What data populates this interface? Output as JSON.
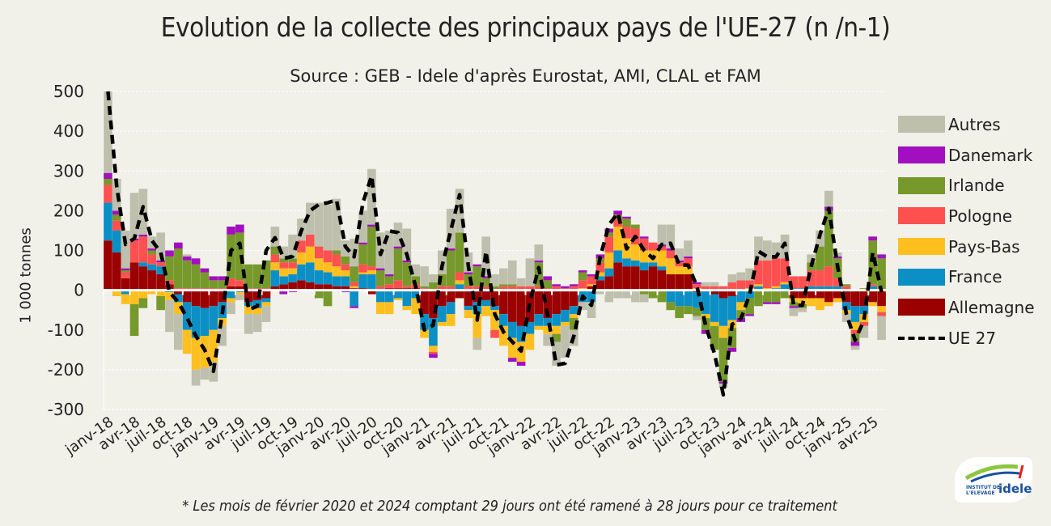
{
  "title": "Evolution de la collecte des principaux pays de l'UE-27 (n  /n-1)",
  "subtitle": "Source : GEB - Idele d'après Eurostat, AMI, CLAL et FAM",
  "footnote": "* Les mois de février 2020 et 2024 comptant 29 jours ont été ramené à 28 jours pour ce traitement",
  "logo_text": "INSTITUT DE L'ELEVAGE idele",
  "chart_data": {
    "type": "bar",
    "stacked": true,
    "ylabel": "1 000 tonnes",
    "ylim": [
      -300,
      500
    ],
    "yticks": [
      "500",
      "400",
      "300",
      "200",
      "100",
      "0",
      "-100",
      "-200",
      "-300"
    ],
    "grid": true,
    "legend_position": "right",
    "first_month": "janv-18",
    "tick_every_months": 3,
    "x_tick_labels": [
      "janv-18",
      "avr-18",
      "juil-18",
      "oct-18",
      "janv-19",
      "avr-19",
      "juil-19",
      "oct-19",
      "janv-20",
      "avr-20",
      "juil-20",
      "oct-20",
      "janv-21",
      "avr-21",
      "juil-21",
      "oct-21",
      "janv-22",
      "avr-22",
      "juil-22",
      "oct-22",
      "janv-23",
      "avr-23",
      "juil-23",
      "oct-23",
      "janv-24",
      "avr-24",
      "juil-24",
      "oct-24",
      "janv-25",
      "avr-25"
    ],
    "series": [
      {
        "name": "Allemagne",
        "color": "#9b0000",
        "values": [
          125,
          95,
          30,
          70,
          60,
          50,
          40,
          15,
          -10,
          -30,
          -40,
          -45,
          -40,
          -30,
          10,
          10,
          -30,
          -25,
          -20,
          10,
          15,
          20,
          25,
          20,
          15,
          15,
          10,
          10,
          5,
          5,
          -10,
          0,
          5,
          5,
          5,
          5,
          -60,
          -70,
          -40,
          -30,
          -20,
          -40,
          -30,
          -25,
          -40,
          -60,
          -80,
          -90,
          -80,
          -60,
          -70,
          -60,
          -50,
          -40,
          0,
          10,
          25,
          35,
          70,
          60,
          60,
          50,
          60,
          50,
          40,
          40,
          40,
          -5,
          0,
          -10,
          -20,
          -15,
          0,
          0,
          0,
          0,
          0,
          0,
          -20,
          -20,
          -20,
          -20,
          -30,
          -20,
          -30,
          -40,
          -40,
          -30,
          -40
        ]
      },
      {
        "name": "France",
        "color": "#0b8fc5",
        "values": [
          95,
          55,
          -10,
          0,
          10,
          15,
          20,
          -5,
          -20,
          -70,
          -80,
          -70,
          -60,
          -40,
          -20,
          -5,
          -10,
          -20,
          -10,
          40,
          20,
          20,
          40,
          50,
          35,
          30,
          25,
          25,
          -40,
          35,
          40,
          -30,
          -30,
          -20,
          -40,
          -20,
          -40,
          -70,
          -40,
          -30,
          15,
          -10,
          -30,
          -15,
          -10,
          -30,
          -40,
          -40,
          -30,
          -30,
          -20,
          -30,
          -30,
          -20,
          -30,
          -30,
          10,
          20,
          30,
          20,
          15,
          20,
          10,
          10,
          -30,
          -40,
          -40,
          -40,
          -60,
          -70,
          -70,
          -60,
          -30,
          -20,
          10,
          0,
          5,
          15,
          5,
          5,
          10,
          10,
          10,
          10,
          -20,
          -40,
          -20,
          10,
          0
        ]
      },
      {
        "name": "Pays-Bas",
        "color": "#ffbf1f",
        "values": [
          0,
          -15,
          -25,
          -35,
          -20,
          -10,
          -15,
          -20,
          -30,
          -60,
          -80,
          -80,
          -80,
          -20,
          -10,
          -5,
          -20,
          -15,
          -10,
          20,
          20,
          15,
          30,
          40,
          30,
          25,
          25,
          15,
          5,
          5,
          10,
          -30,
          -30,
          -5,
          -10,
          -40,
          -20,
          -15,
          -10,
          -30,
          10,
          -20,
          -60,
          -25,
          -50,
          -50,
          -50,
          -50,
          -40,
          -10,
          -20,
          -20,
          -10,
          -10,
          5,
          5,
          10,
          40,
          60,
          50,
          40,
          30,
          30,
          40,
          40,
          20,
          20,
          5,
          -10,
          -10,
          -30,
          -20,
          -20,
          5,
          5,
          5,
          5,
          5,
          -10,
          -15,
          -20,
          -30,
          -10,
          -10,
          -10,
          -20,
          -20,
          -10,
          -15
        ]
      },
      {
        "name": "Pologne",
        "color": "#ff5050",
        "values": [
          45,
          25,
          15,
          55,
          65,
          25,
          10,
          10,
          5,
          5,
          5,
          5,
          5,
          5,
          20,
          15,
          5,
          5,
          5,
          20,
          15,
          15,
          30,
          30,
          30,
          30,
          30,
          15,
          10,
          20,
          10,
          10,
          10,
          20,
          5,
          10,
          5,
          -5,
          10,
          10,
          20,
          10,
          10,
          10,
          -20,
          10,
          10,
          10,
          10,
          10,
          5,
          10,
          5,
          10,
          20,
          20,
          25,
          40,
          20,
          30,
          40,
          30,
          20,
          10,
          20,
          10,
          20,
          10,
          10,
          10,
          10,
          20,
          25,
          20,
          60,
          70,
          70,
          60,
          30,
          30,
          40,
          40,
          50,
          20,
          10,
          -10,
          -10,
          5,
          -10
        ]
      },
      {
        "name": "Irlande",
        "color": "#77982b",
        "values": [
          15,
          15,
          5,
          -80,
          -25,
          10,
          -35,
          60,
          100,
          70,
          60,
          40,
          20,
          20,
          110,
          120,
          60,
          60,
          70,
          20,
          10,
          10,
          0,
          0,
          -20,
          -40,
          10,
          20,
          40,
          50,
          100,
          40,
          20,
          80,
          60,
          20,
          5,
          20,
          30,
          90,
          100,
          30,
          50,
          20,
          10,
          5,
          5,
          0,
          0,
          60,
          20,
          -20,
          0,
          -30,
          20,
          0,
          10,
          10,
          10,
          20,
          10,
          -10,
          -20,
          -30,
          -20,
          -30,
          -20,
          -20,
          -30,
          -60,
          -110,
          -50,
          -20,
          -40,
          -40,
          -30,
          -30,
          -20,
          -10,
          -10,
          20,
          60,
          140,
          50,
          5,
          -20,
          5,
          110,
          80
        ]
      },
      {
        "name": "Danemark",
        "color": "#a20fc0",
        "values": [
          15,
          10,
          5,
          5,
          5,
          5,
          5,
          15,
          15,
          10,
          15,
          10,
          10,
          10,
          20,
          20,
          0,
          0,
          0,
          0,
          -10,
          -5,
          0,
          0,
          0,
          0,
          0,
          -5,
          -5,
          5,
          5,
          5,
          5,
          5,
          5,
          0,
          0,
          -10,
          0,
          5,
          0,
          5,
          5,
          5,
          0,
          0,
          -10,
          -10,
          0,
          5,
          10,
          5,
          5,
          5,
          5,
          5,
          10,
          10,
          10,
          5,
          0,
          5,
          0,
          5,
          5,
          5,
          5,
          5,
          -10,
          0,
          -5,
          -10,
          -10,
          -5,
          0,
          -5,
          -5,
          0,
          -5,
          0,
          0,
          0,
          10,
          5,
          0,
          -10,
          0,
          10,
          10
        ]
      },
      {
        "name": "Autres",
        "color": "#bfbfad",
        "values": [
          205,
          80,
          95,
          115,
          115,
          30,
          70,
          -80,
          -90,
          5,
          -40,
          -30,
          -50,
          -50,
          -30,
          -15,
          -50,
          -45,
          -40,
          50,
          30,
          60,
          55,
          80,
          110,
          115,
          130,
          40,
          70,
          80,
          140,
          90,
          110,
          60,
          80,
          30,
          50,
          20,
          60,
          100,
          110,
          50,
          -30,
          100,
          30,
          40,
          60,
          20,
          70,
          40,
          -30,
          -60,
          -80,
          -40,
          -20,
          -40,
          -10,
          -30,
          -20,
          -20,
          -30,
          -20,
          0,
          50,
          60,
          30,
          40,
          -10,
          10,
          10,
          -10,
          20,
          20,
          30,
          60,
          50,
          40,
          60,
          -20,
          -10,
          20,
          40,
          40,
          10,
          -20,
          -10,
          -30,
          0,
          -60
        ]
      },
      {
        "name": "UE 27",
        "type": "line",
        "color": "#000000",
        "dashed": true,
        "values": [
          500,
          260,
          115,
          130,
          210,
          125,
          95,
          -5,
          -30,
          -70,
          -115,
          -150,
          -204,
          -60,
          100,
          118,
          -49,
          -40,
          100,
          132,
          80,
          85,
          150,
          200,
          216,
          220,
          227,
          110,
          84,
          220,
          288,
          90,
          149,
          145,
          90,
          10,
          -100,
          -88,
          60,
          150,
          240,
          60,
          -75,
          98,
          -60,
          -105,
          -130,
          -153,
          -30,
          57,
          -60,
          -188,
          -184,
          -115,
          -15,
          -38,
          84,
          165,
          194,
          104,
          135,
          100,
          80,
          115,
          118,
          63,
          63,
          10,
          -90,
          -160,
          -263,
          -86,
          -72,
          -10,
          98,
          84,
          84,
          118,
          -38,
          -38,
          60,
          140,
          206,
          60,
          -60,
          -126,
          -75,
          95,
          -4
        ]
      }
    ]
  }
}
